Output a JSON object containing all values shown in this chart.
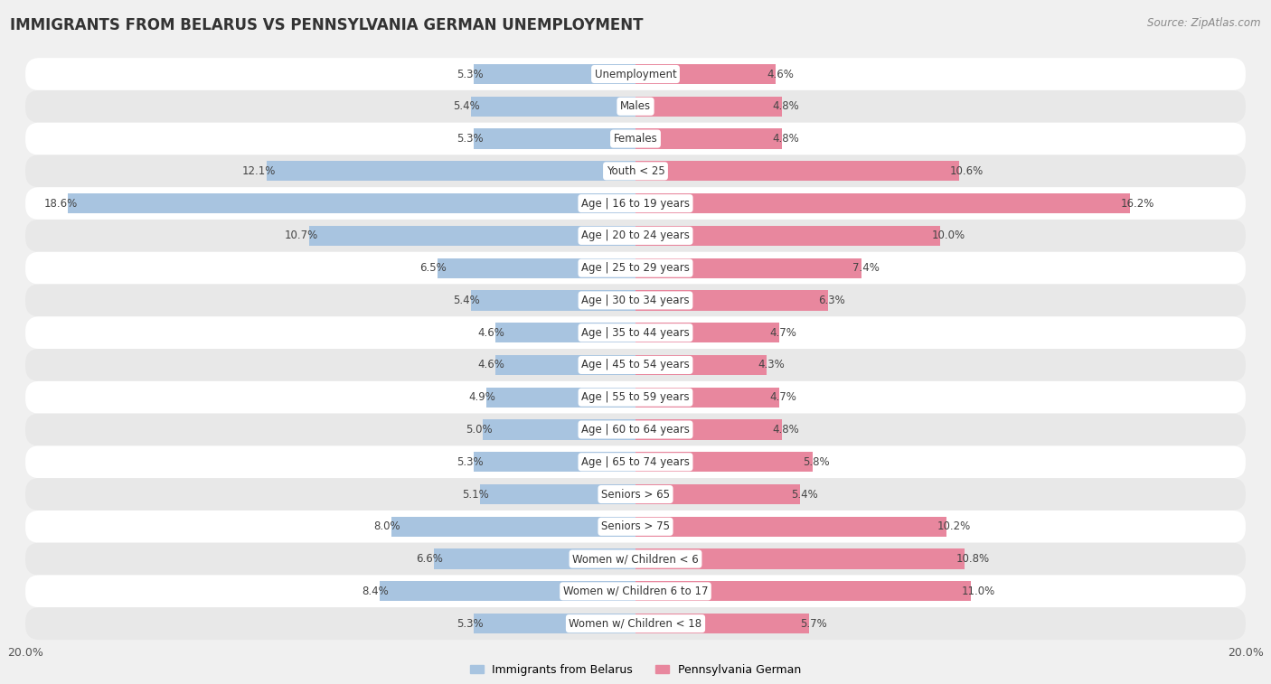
{
  "title": "IMMIGRANTS FROM BELARUS VS PENNSYLVANIA GERMAN UNEMPLOYMENT",
  "source": "Source: ZipAtlas.com",
  "categories": [
    "Unemployment",
    "Males",
    "Females",
    "Youth < 25",
    "Age | 16 to 19 years",
    "Age | 20 to 24 years",
    "Age | 25 to 29 years",
    "Age | 30 to 34 years",
    "Age | 35 to 44 years",
    "Age | 45 to 54 years",
    "Age | 55 to 59 years",
    "Age | 60 to 64 years",
    "Age | 65 to 74 years",
    "Seniors > 65",
    "Seniors > 75",
    "Women w/ Children < 6",
    "Women w/ Children 6 to 17",
    "Women w/ Children < 18"
  ],
  "belarus_values": [
    5.3,
    5.4,
    5.3,
    12.1,
    18.6,
    10.7,
    6.5,
    5.4,
    4.6,
    4.6,
    4.9,
    5.0,
    5.3,
    5.1,
    8.0,
    6.6,
    8.4,
    5.3
  ],
  "pagerman_values": [
    4.6,
    4.8,
    4.8,
    10.6,
    16.2,
    10.0,
    7.4,
    6.3,
    4.7,
    4.3,
    4.7,
    4.8,
    5.8,
    5.4,
    10.2,
    10.8,
    11.0,
    5.7
  ],
  "belarus_color": "#a8c4e0",
  "pagerman_color": "#e8879e",
  "axis_max": 20.0,
  "bar_height": 0.62,
  "bg_color": "#f0f0f0",
  "row_color_even": "#ffffff",
  "row_color_odd": "#e8e8e8",
  "legend_belarus": "Immigrants from Belarus",
  "legend_pagerman": "Pennsylvania German",
  "title_fontsize": 12,
  "source_fontsize": 8.5,
  "label_fontsize": 8.5,
  "category_fontsize": 8.5
}
